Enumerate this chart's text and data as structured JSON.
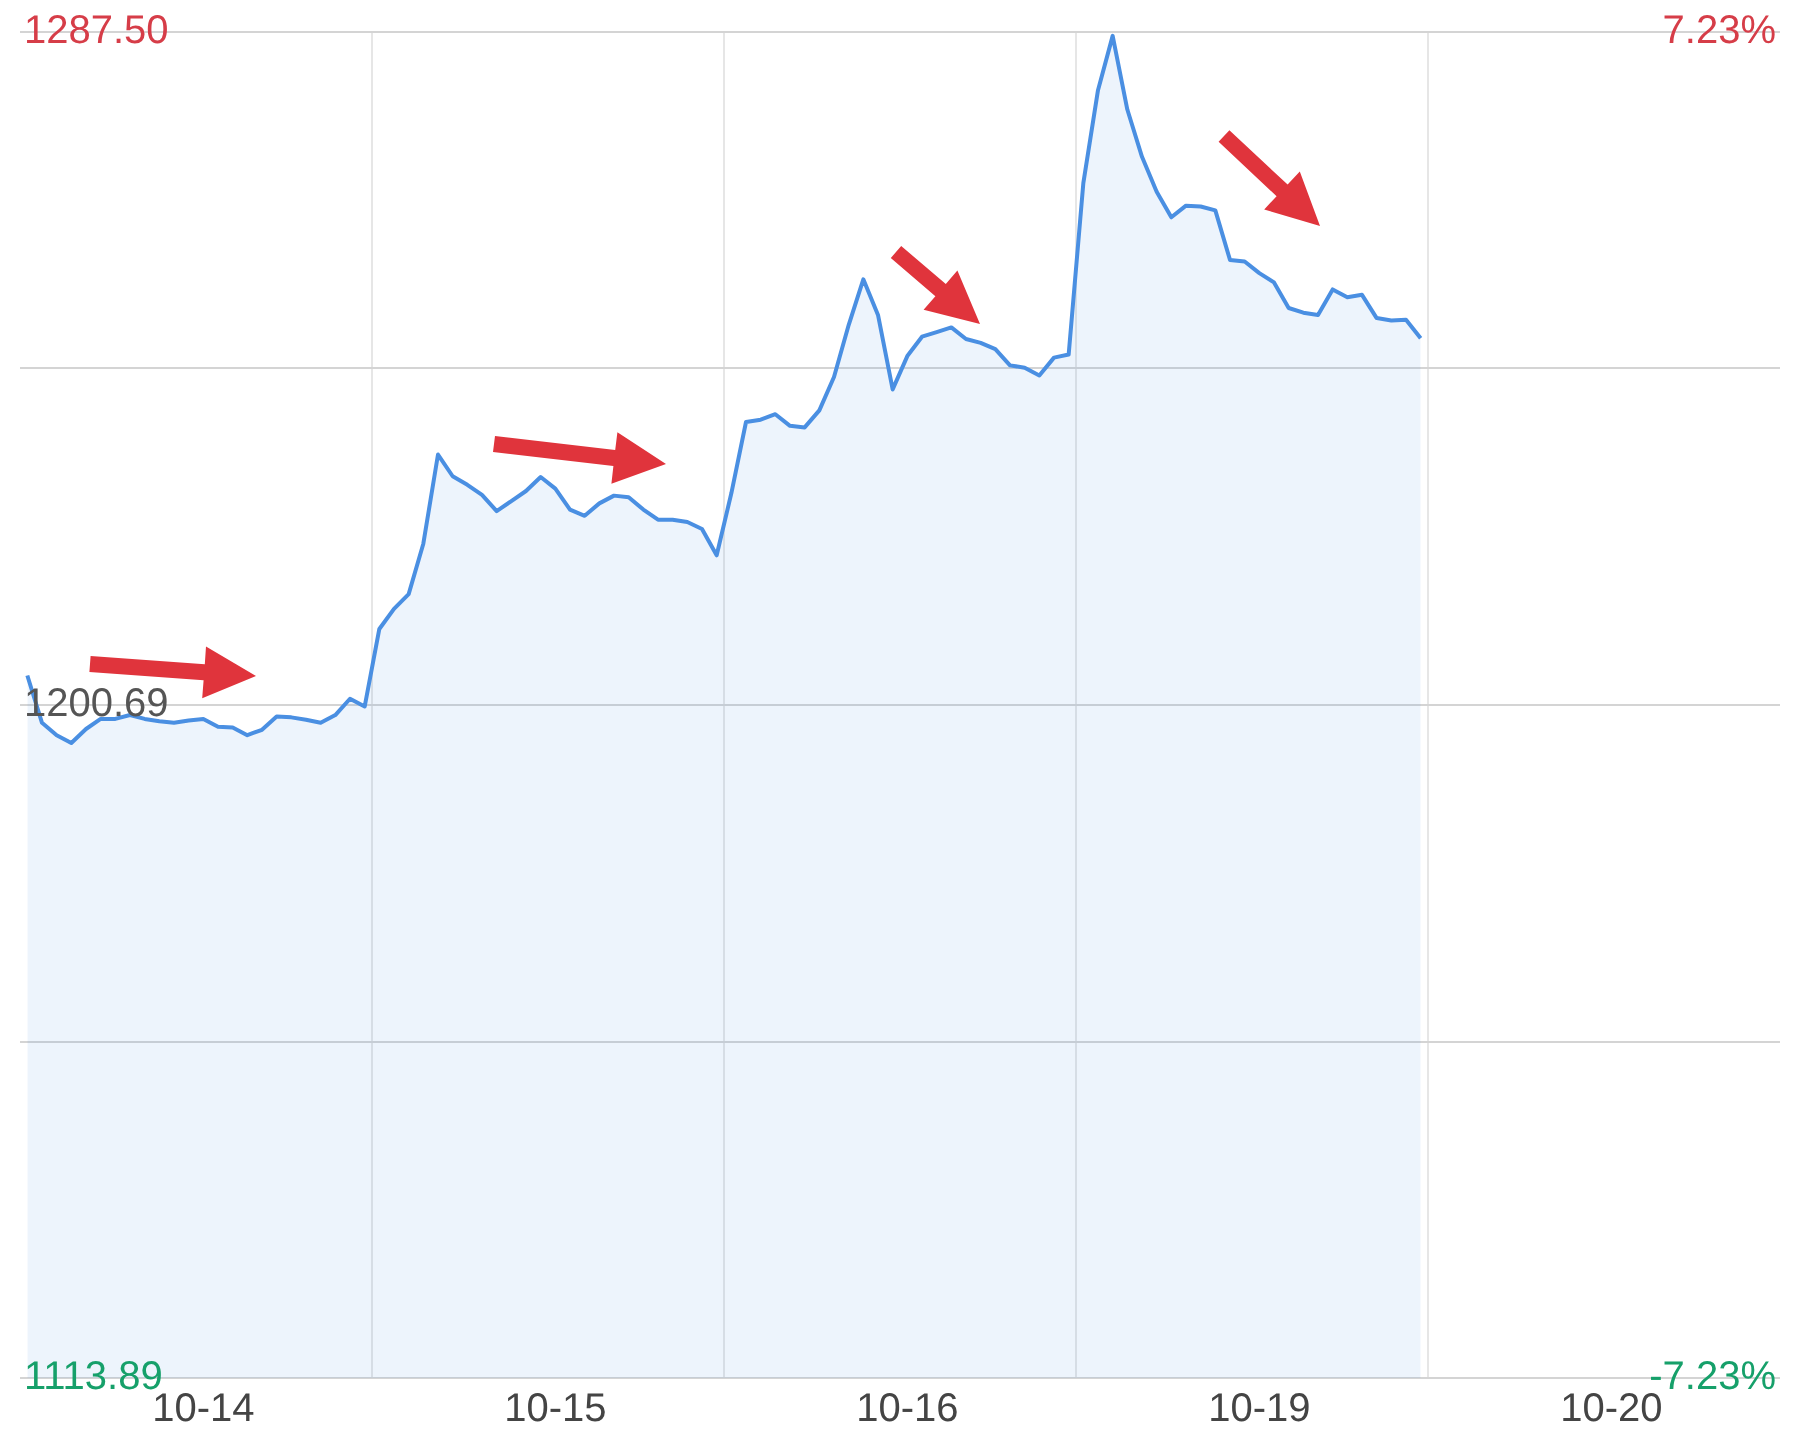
{
  "chart_data": {
    "type": "area",
    "categories": [
      null,
      null,
      null,
      null,
      null,
      null,
      null,
      null,
      null,
      null,
      null,
      null,
      "10-14",
      null,
      null,
      null,
      null,
      null,
      null,
      null,
      null,
      null,
      null,
      null,
      null,
      null,
      null,
      null,
      null,
      null,
      null,
      null,
      null,
      null,
      null,
      null,
      "10-15",
      null,
      null,
      null,
      null,
      null,
      null,
      null,
      null,
      null,
      null,
      null,
      null,
      null,
      null,
      null,
      null,
      null,
      null,
      null,
      null,
      null,
      null,
      null,
      "10-16",
      null,
      null,
      null,
      null,
      null,
      null,
      null,
      null,
      null,
      null,
      null,
      null,
      null,
      null,
      null,
      null,
      null,
      null,
      null,
      null,
      null,
      null,
      null,
      "10-19",
      null,
      null,
      null,
      null,
      null,
      null,
      null,
      null,
      null,
      null,
      null,
      null,
      null,
      null,
      null,
      null,
      null,
      null,
      null,
      null,
      null,
      null,
      null,
      "10-20",
      null,
      null,
      null,
      null,
      null,
      null,
      null,
      null,
      null,
      null,
      null
    ],
    "ylim": [
      1113.89,
      1287.5
    ],
    "yticks": [
      1113.89,
      {
        "value": 1157.29,
        "label": null
      },
      1200.69,
      {
        "value": 1244.1,
        "label": null
      },
      {
        "value": 1287.5,
        "label": "1287.50"
      }
    ],
    "y2lim": [
      -7.23,
      7.23
    ],
    "y2ticks": [
      {
        "value": -7.23,
        "label": "-7.23%"
      },
      {
        "value": 7.23,
        "label": "7.23%"
      }
    ],
    "grid": true,
    "legend": false,
    "marker": "none",
    "series": [
      {
        "color": "#4a8fe2",
        "values": [
          1204.5,
          1198.4,
          1196.8,
          1195.8,
          1197.6,
          1198.9,
          1198.9,
          1199.4,
          1198.9,
          1198.6,
          1198.4,
          1198.7,
          1198.9,
          1197.9,
          1197.8,
          1196.8,
          1197.5,
          1199.2,
          1199.1,
          1198.8,
          1198.4,
          1199.4,
          1201.5,
          1200.5,
          1210.5,
          1213.1,
          1215.0,
          1221.5,
          1233.0,
          1230.2,
          1229.1,
          1227.8,
          1225.7,
          1227.0,
          1228.3,
          1230.1,
          1228.6,
          1225.9,
          1225.1,
          1226.7,
          1227.7,
          1227.5,
          1225.9,
          1224.6,
          1224.6,
          1224.3,
          1223.4,
          1220.0,
          1228.0,
          1237.2,
          1237.5,
          1238.2,
          1236.7,
          1236.5,
          1238.7,
          1243.0,
          1249.7,
          1255.6,
          1251.0,
          1241.4,
          1245.7,
          1248.2,
          1248.8,
          1249.4,
          1247.9,
          1247.4,
          1246.6,
          1244.5,
          1244.2,
          1243.2,
          1245.5,
          1245.9,
          1268.0,
          1280.0,
          1287.0,
          1277.5,
          1271.4,
          1266.9,
          1263.6,
          1265.1,
          1265.0,
          1264.5,
          1258.1,
          1257.9,
          1256.4,
          1255.2,
          1251.9,
          1251.3,
          1251.0,
          1254.3,
          1253.3,
          1253.6,
          1250.6,
          1250.3,
          1250.4,
          1248.0,
          null,
          null,
          null,
          null,
          null,
          null,
          null,
          null,
          null,
          null,
          null,
          null,
          null,
          null,
          null,
          null,
          null,
          null,
          null,
          null,
          null,
          null,
          null,
          null
        ]
      }
    ]
  }
}
